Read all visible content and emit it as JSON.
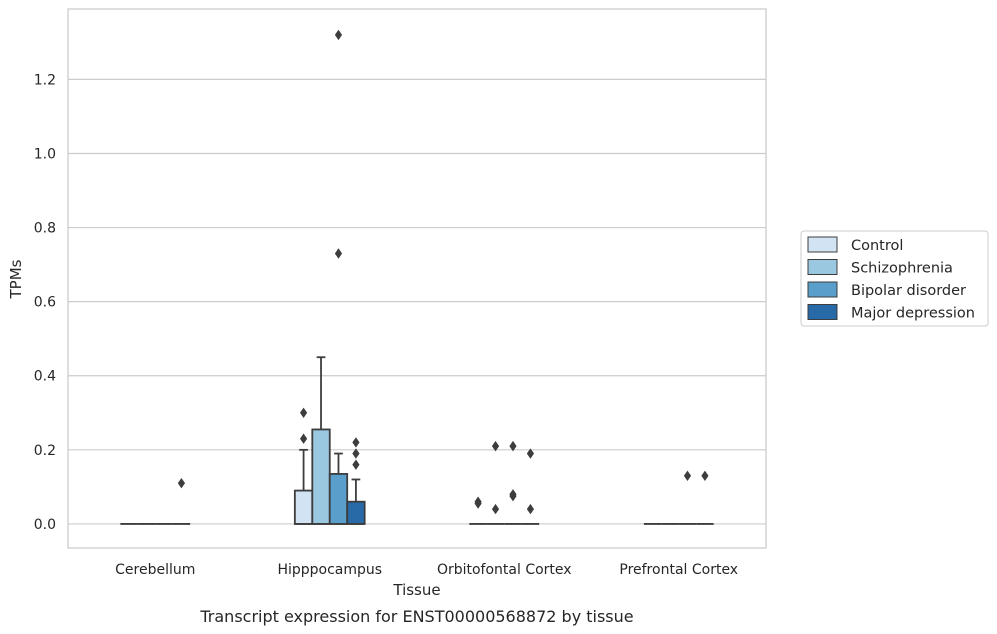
{
  "caption": "Transcript expression for ENST00000568872 by tissue",
  "chart_data": {
    "type": "box",
    "xlabel": "Tissue",
    "ylabel": "TPMs",
    "ylim": [
      -0.065,
      1.39
    ],
    "yticks": [
      0.0,
      0.2,
      0.4,
      0.6,
      0.8,
      1.0,
      1.2
    ],
    "ytick_labels": [
      "0.0",
      "0.2",
      "0.4",
      "0.6",
      "0.8",
      "1.0",
      "1.2"
    ],
    "grid": "horizontal",
    "legend_position": "right",
    "categories": [
      "Cerebellum",
      "Hipppocampus",
      "Orbitofontal Cortex",
      "Prefrontal Cortex"
    ],
    "series": [
      {
        "name": "Control",
        "color": "#d2e3f3",
        "boxes": [
          {
            "q1": 0,
            "median": 0,
            "q3": 0,
            "whisker_low": 0,
            "whisker_high": 0,
            "outliers": []
          },
          {
            "q1": 0,
            "median": 0,
            "q3": 0.09,
            "whisker_low": 0,
            "whisker_high": 0.2,
            "outliers": [
              0.23,
              0.3
            ]
          },
          {
            "q1": 0,
            "median": 0,
            "q3": 0,
            "whisker_low": 0,
            "whisker_high": 0,
            "outliers": [
              0.06,
              0.055
            ]
          },
          {
            "q1": 0,
            "median": 0,
            "q3": 0,
            "whisker_low": 0,
            "whisker_high": 0,
            "outliers": []
          }
        ]
      },
      {
        "name": "Schizophrenia",
        "color": "#9ac8e0",
        "boxes": [
          {
            "q1": 0,
            "median": 0,
            "q3": 0,
            "whisker_low": 0,
            "whisker_high": 0,
            "outliers": []
          },
          {
            "q1": 0,
            "median": 0,
            "q3": 0.255,
            "whisker_low": 0,
            "whisker_high": 0.45,
            "outliers": []
          },
          {
            "q1": 0,
            "median": 0,
            "q3": 0,
            "whisker_low": 0,
            "whisker_high": 0,
            "outliers": [
              0.04,
              0.21
            ]
          },
          {
            "q1": 0,
            "median": 0,
            "q3": 0,
            "whisker_low": 0,
            "whisker_high": 0,
            "outliers": []
          }
        ]
      },
      {
        "name": "Bipolar disorder",
        "color": "#5a9fcc",
        "boxes": [
          {
            "q1": 0,
            "median": 0,
            "q3": 0,
            "whisker_low": 0,
            "whisker_high": 0,
            "outliers": []
          },
          {
            "q1": 0,
            "median": 0,
            "q3": 0.135,
            "whisker_low": 0,
            "whisker_high": 0.19,
            "outliers": [
              0.73,
              1.32
            ]
          },
          {
            "q1": 0,
            "median": 0,
            "q3": 0,
            "whisker_low": 0,
            "whisker_high": 0,
            "outliers": [
              0.08,
              0.075,
              0.21
            ]
          },
          {
            "q1": 0,
            "median": 0,
            "q3": 0,
            "whisker_low": 0,
            "whisker_high": 0,
            "outliers": [
              0.13
            ]
          }
        ]
      },
      {
        "name": "Major depression",
        "color": "#2869a8",
        "boxes": [
          {
            "q1": 0,
            "median": 0,
            "q3": 0,
            "whisker_low": 0,
            "whisker_high": 0,
            "outliers": [
              0.11
            ]
          },
          {
            "q1": 0,
            "median": 0,
            "q3": 0.06,
            "whisker_low": 0,
            "whisker_high": 0.12,
            "outliers": [
              0.16,
              0.19,
              0.22
            ]
          },
          {
            "q1": 0,
            "median": 0,
            "q3": 0,
            "whisker_low": 0,
            "whisker_high": 0,
            "outliers": [
              0.04,
              0.19
            ]
          },
          {
            "q1": 0,
            "median": 0,
            "q3": 0,
            "whisker_low": 0,
            "whisker_high": 0,
            "outliers": [
              0.13
            ]
          }
        ]
      }
    ]
  }
}
